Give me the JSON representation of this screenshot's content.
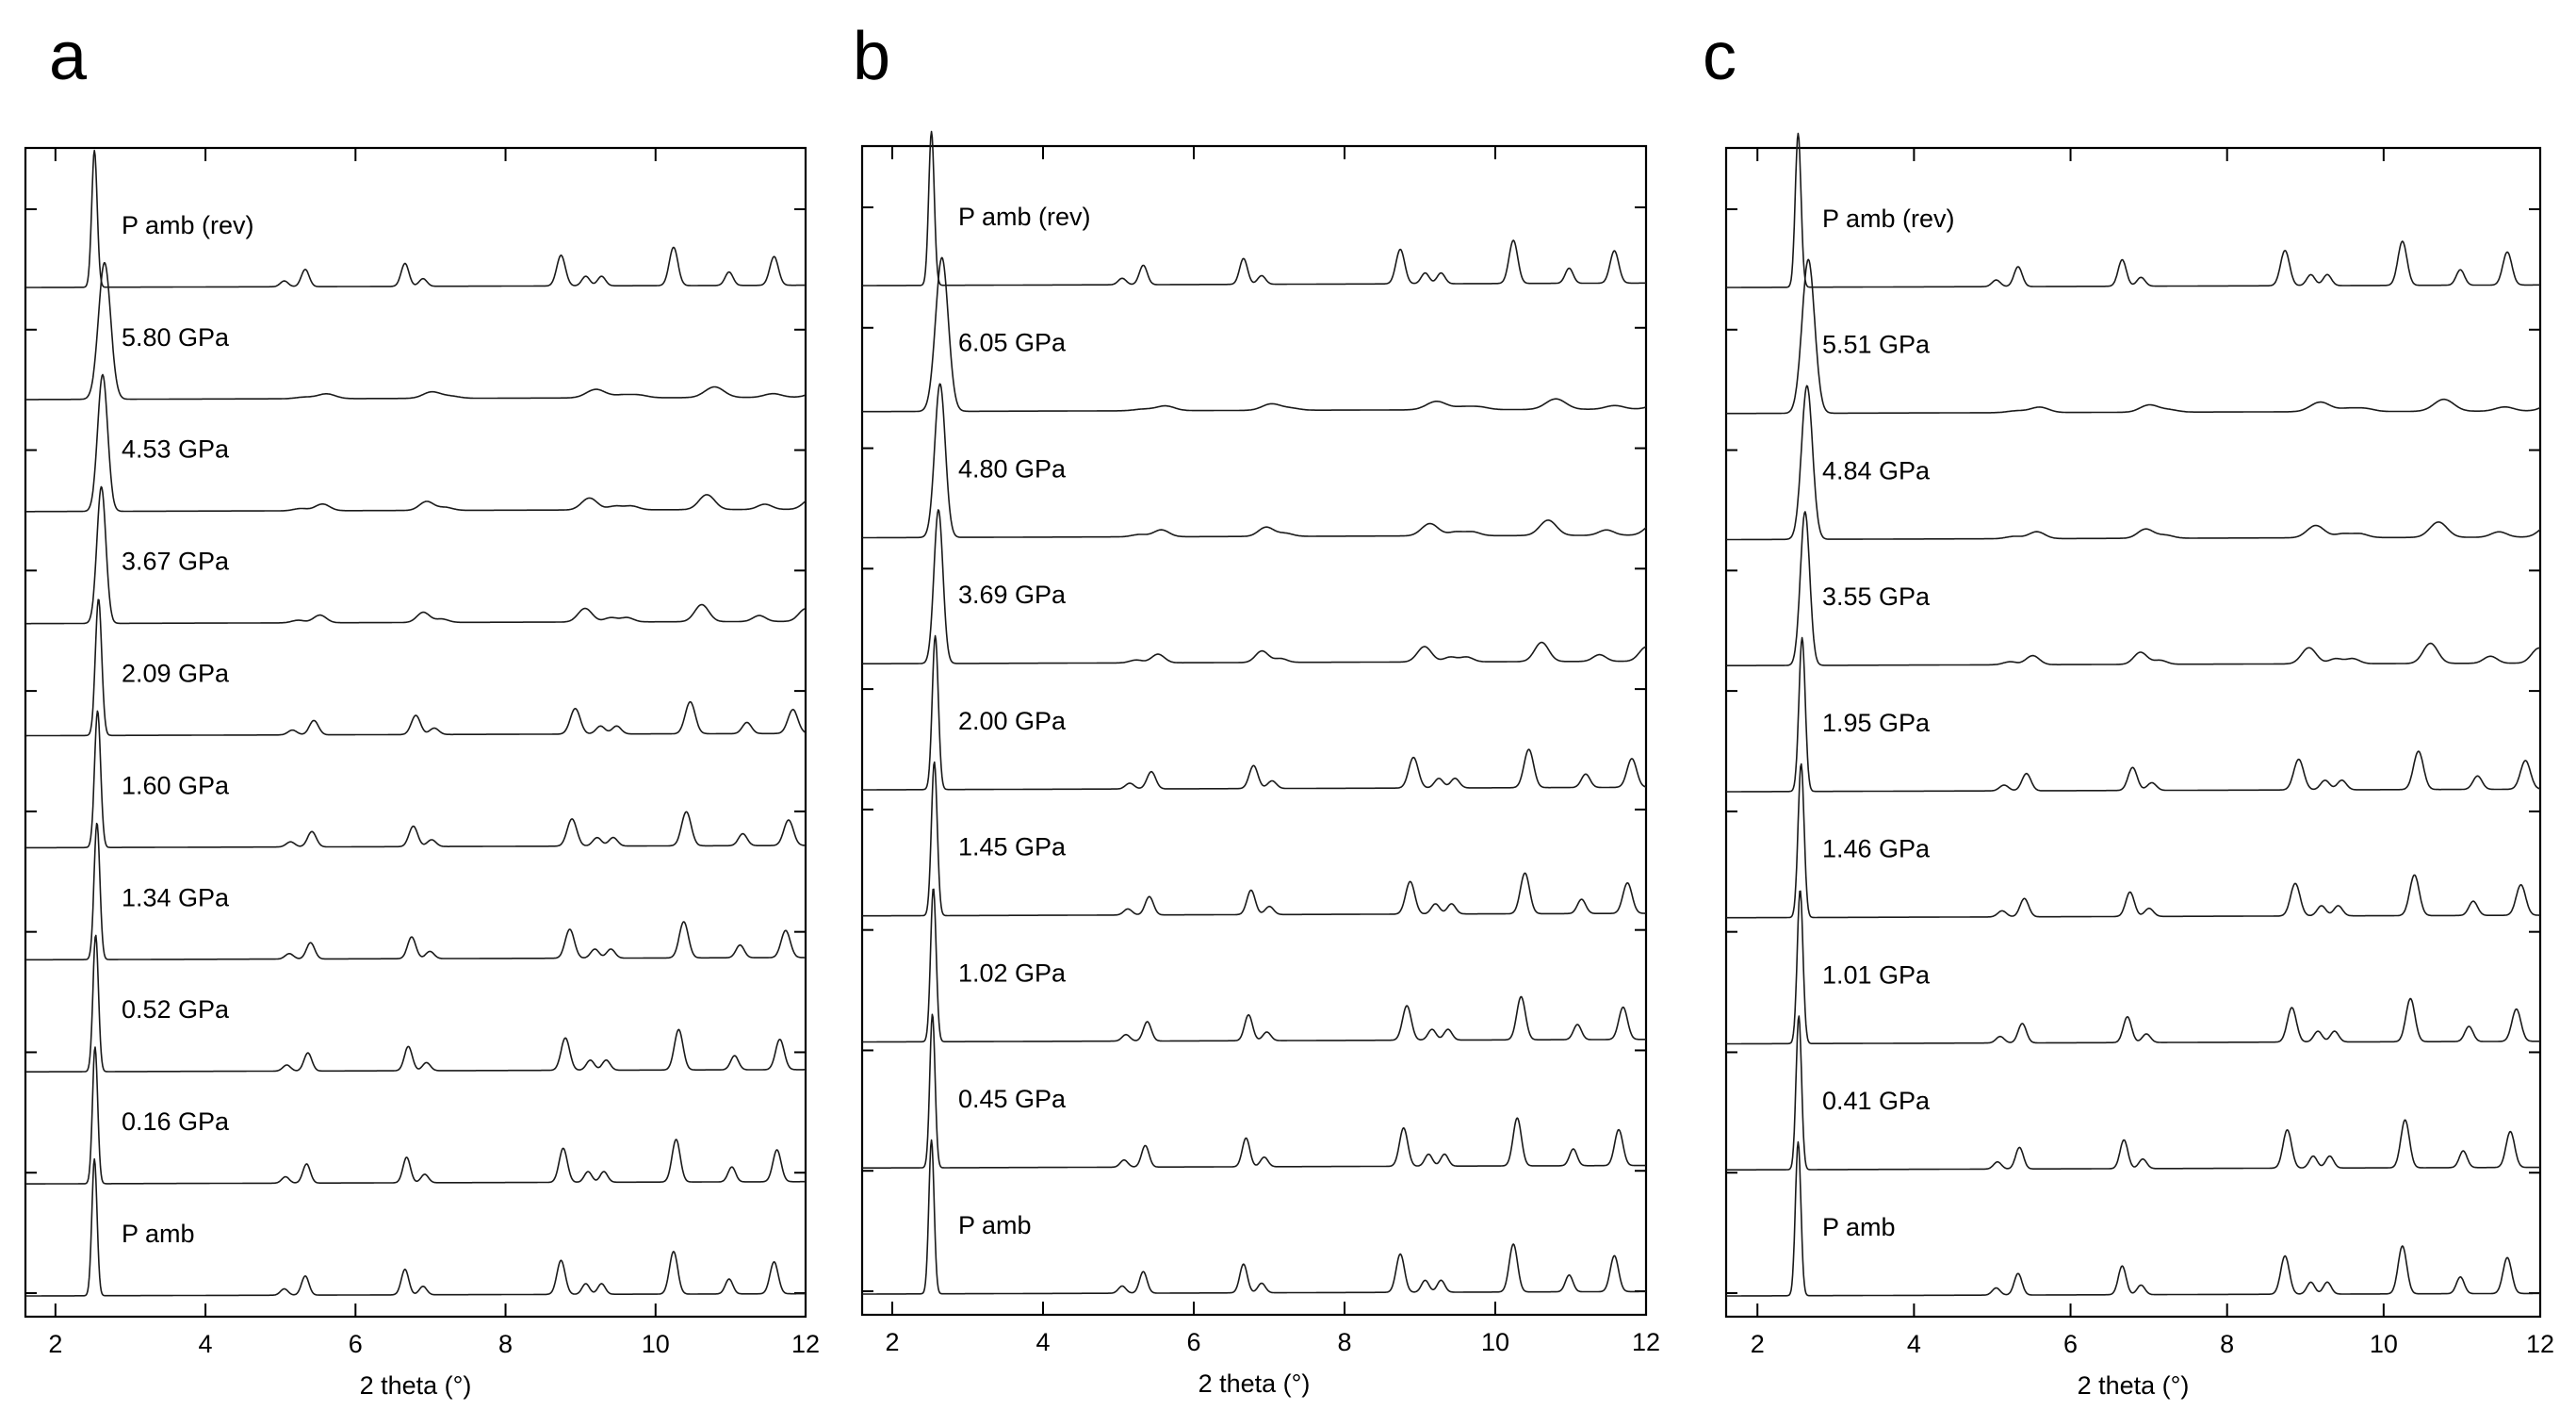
{
  "chart_data": [
    {
      "type": "line",
      "panel_label": "a",
      "xlabel": "2 theta (°)",
      "xlim": [
        1.6,
        12
      ],
      "x_ticks": [
        "2",
        "4",
        "6",
        "8",
        "10",
        "12"
      ],
      "y_ticks": 10,
      "series": [
        {
          "name": "P amb",
          "peak_shift": 0.0,
          "broadening": 1.0,
          "reflection_scale": 1.0
        },
        {
          "name": "0.16 GPa",
          "peak_shift": 0.02,
          "broadening": 1.0,
          "reflection_scale": 1.0
        },
        {
          "name": "0.52 GPa",
          "peak_shift": 0.04,
          "broadening": 1.05,
          "reflection_scale": 0.95
        },
        {
          "name": "1.34 GPa",
          "peak_shift": 0.08,
          "broadening": 1.1,
          "reflection_scale": 0.85
        },
        {
          "name": "1.60 GPa",
          "peak_shift": 0.1,
          "broadening": 1.15,
          "reflection_scale": 0.8
        },
        {
          "name": "2.09 GPa",
          "peak_shift": 0.13,
          "broadening": 1.2,
          "reflection_scale": 0.75
        },
        {
          "name": "3.67 GPa",
          "peak_shift": 0.22,
          "broadening": 1.7,
          "reflection_scale": 0.4
        },
        {
          "name": "4.53 GPa",
          "peak_shift": 0.26,
          "broadening": 1.9,
          "reflection_scale": 0.35
        },
        {
          "name": "5.80 GPa",
          "peak_shift": 0.32,
          "broadening": 2.3,
          "reflection_scale": 0.25
        },
        {
          "name": "P amb (rev)",
          "peak_shift": 0.0,
          "broadening": 1.05,
          "reflection_scale": 0.9
        }
      ]
    },
    {
      "type": "line",
      "panel_label": "b",
      "xlabel": "2 theta (°)",
      "xlim": [
        1.6,
        12
      ],
      "x_ticks": [
        "2",
        "4",
        "6",
        "8",
        "10",
        "12"
      ],
      "y_ticks": 10,
      "series": [
        {
          "name": "P amb",
          "peak_shift": 0.0,
          "broadening": 1.0,
          "reflection_scale": 1.0
        },
        {
          "name": "0.45 GPa",
          "peak_shift": 0.03,
          "broadening": 1.0,
          "reflection_scale": 1.0
        },
        {
          "name": "1.02 GPa",
          "peak_shift": 0.06,
          "broadening": 1.05,
          "reflection_scale": 0.9
        },
        {
          "name": "1.45 GPa",
          "peak_shift": 0.09,
          "broadening": 1.1,
          "reflection_scale": 0.85
        },
        {
          "name": "2.00 GPa",
          "peak_shift": 0.12,
          "broadening": 1.15,
          "reflection_scale": 0.8
        },
        {
          "name": "3.69 GPa",
          "peak_shift": 0.22,
          "broadening": 1.7,
          "reflection_scale": 0.4
        },
        {
          "name": "4.80 GPa",
          "peak_shift": 0.27,
          "broadening": 2.0,
          "reflection_scale": 0.32
        },
        {
          "name": "6.05 GPa",
          "peak_shift": 0.33,
          "broadening": 2.4,
          "reflection_scale": 0.22
        },
        {
          "name": "P amb (rev)",
          "peak_shift": 0.0,
          "broadening": 1.05,
          "reflection_scale": 0.9
        }
      ]
    },
    {
      "type": "line",
      "panel_label": "c",
      "xlabel": "2 theta (°)",
      "xlim": [
        1.6,
        12
      ],
      "x_ticks": [
        "2",
        "4",
        "6",
        "8",
        "10",
        "12"
      ],
      "y_ticks": 10,
      "series": [
        {
          "name": "P amb",
          "peak_shift": 0.0,
          "broadening": 1.0,
          "reflection_scale": 1.0
        },
        {
          "name": "0.41 GPa",
          "peak_shift": 0.02,
          "broadening": 1.0,
          "reflection_scale": 1.0
        },
        {
          "name": "1.01 GPa",
          "peak_shift": 0.06,
          "broadening": 1.05,
          "reflection_scale": 0.9
        },
        {
          "name": "1.46 GPa",
          "peak_shift": 0.09,
          "broadening": 1.1,
          "reflection_scale": 0.85
        },
        {
          "name": "1.95 GPa",
          "peak_shift": 0.12,
          "broadening": 1.15,
          "reflection_scale": 0.8
        },
        {
          "name": "3.55 GPa",
          "peak_shift": 0.21,
          "broadening": 1.7,
          "reflection_scale": 0.42
        },
        {
          "name": "4.84 GPa",
          "peak_shift": 0.27,
          "broadening": 2.0,
          "reflection_scale": 0.32
        },
        {
          "name": "5.51 GPa",
          "peak_shift": 0.31,
          "broadening": 2.3,
          "reflection_scale": 0.25
        },
        {
          "name": "P amb (rev)",
          "peak_shift": 0.0,
          "broadening": 1.05,
          "reflection_scale": 0.92
        }
      ]
    }
  ],
  "reflections": [
    {
      "two_theta": 2.52,
      "intensity": 1.0,
      "width": 0.035
    },
    {
      "two_theta": 5.05,
      "intensity": 0.03,
      "width": 0.05
    },
    {
      "two_theta": 5.33,
      "intensity": 0.09,
      "width": 0.05
    },
    {
      "two_theta": 6.66,
      "intensity": 0.12,
      "width": 0.05
    },
    {
      "two_theta": 6.9,
      "intensity": 0.04,
      "width": 0.05
    },
    {
      "two_theta": 8.74,
      "intensity": 0.16,
      "width": 0.055
    },
    {
      "two_theta": 9.07,
      "intensity": 0.05,
      "width": 0.05
    },
    {
      "two_theta": 9.28,
      "intensity": 0.05,
      "width": 0.05
    },
    {
      "two_theta": 10.24,
      "intensity": 0.2,
      "width": 0.055
    },
    {
      "two_theta": 10.98,
      "intensity": 0.07,
      "width": 0.05
    },
    {
      "two_theta": 11.58,
      "intensity": 0.15,
      "width": 0.055
    }
  ]
}
